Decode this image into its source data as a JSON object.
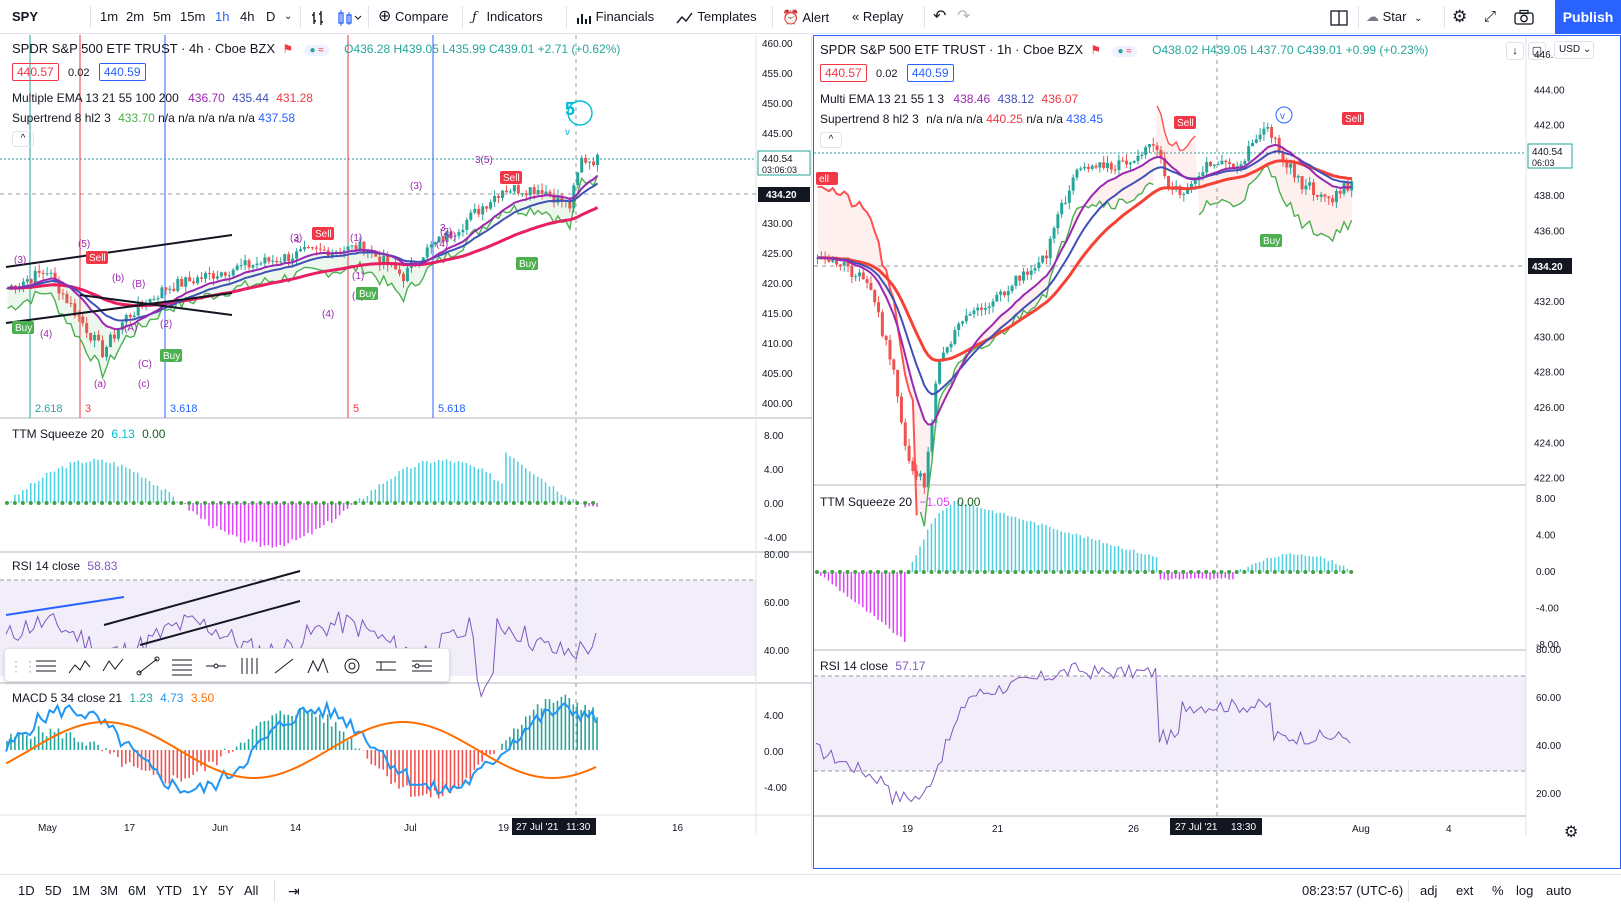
{
  "toolbar": {
    "symbol": "SPY",
    "intervals": [
      "1m",
      "2m",
      "5m",
      "15m",
      "1h",
      "4h",
      "D"
    ],
    "active_interval": "1h",
    "compare": "Compare",
    "indicators": "Indicators",
    "financials": "Financials",
    "templates": "Templates",
    "alert": "Alert",
    "replay": "Replay",
    "star": "Star",
    "publish": "Publish"
  },
  "left": {
    "title": "SPDR S&P 500 ETF TRUST · 4h · Cboe BZX",
    "ohlc": {
      "o": "O436.28",
      "h": "H439.05",
      "l": "L435.99",
      "c": "C439.01",
      "chg": "+2.71 (+0.62%)"
    },
    "bid": "440.57",
    "spread": "0.02",
    "ask": "440.59",
    "ema_label": "Multiple EMA 13 21 55 100 200",
    "ema_vals": [
      "436.70",
      "435.44",
      "431.28"
    ],
    "st_label": "Supertrend 8 hl2 3",
    "st_vals": [
      "433.70",
      "n/a",
      "n/a",
      "n/a",
      "n/a",
      "n/a",
      "437.58"
    ],
    "price_axis": [
      "460.00",
      "455.00",
      "450.00",
      "445.00",
      "440.00",
      "435.00",
      "430.00",
      "425.00",
      "420.00",
      "415.00",
      "410.00",
      "405.00",
      "400.00"
    ],
    "last_price": "440.54",
    "countdown": "03:06:03",
    "crosshair_price": "434.20",
    "fib_labels": [
      "2.618",
      "3",
      "3.618",
      "5",
      "5.618"
    ],
    "wave_labels": [
      "(3)",
      "(5)",
      "(b)",
      "(B)",
      "(A)",
      "(a)",
      "(c)",
      "(C)",
      "(4)",
      "(2)",
      "(1)",
      "(3)",
      "(4)",
      "(2)",
      "(3)",
      "(4)",
      "3(5)",
      "5",
      "v",
      "(1)",
      "(2)",
      "(4)",
      "3",
      "4",
      "2"
    ],
    "signals": {
      "sell": "Sell",
      "buy": "Buy"
    },
    "ttm_label": "TTM Squeeze 20",
    "ttm_vals": [
      "6.13",
      "0.00"
    ],
    "ttm_axis": [
      "8.00",
      "4.00",
      "0.00",
      "-4.00"
    ],
    "rsi_label": "RSI 14 close",
    "rsi_val": "58.83",
    "rsi_axis": [
      "80.00",
      "60.00",
      "40.00"
    ],
    "macd_label": "MACD 5 34 close 21",
    "macd_vals": [
      "1.23",
      "4.73",
      "3.50"
    ],
    "macd_axis": [
      "4.00",
      "0.00",
      "-4.00"
    ],
    "time_axis": [
      "May",
      "17",
      "Jun",
      "14",
      "Jul",
      "19",
      "16"
    ],
    "crosshair_time": "27 Jul '21",
    "crosshair_time2": "11:30"
  },
  "right": {
    "title": "SPDR S&P 500 ETF TRUST · 1h · Cboe BZX",
    "ohlc": {
      "o": "O438.02",
      "h": "H439.05",
      "l": "L437.70",
      "c": "C439.01",
      "chg": "+0.99 (+0.23%)"
    },
    "bid": "440.57",
    "spread": "0.02",
    "ask": "440.59",
    "ema_label": "Multi EMA 13 21 55 1 3",
    "ema_vals": [
      "438.46",
      "438.12",
      "436.07"
    ],
    "st_label": "Supertrend 8 hl2 3",
    "st_vals": [
      "n/a",
      "n/a",
      "n/a",
      "440.25",
      "n/a",
      "n/a",
      "438.45"
    ],
    "currency": "USD",
    "price_axis": [
      "446.00",
      "444.00",
      "442.00",
      "440.00",
      "438.00",
      "436.00",
      "434.00",
      "432.00",
      "430.00",
      "428.00",
      "426.00",
      "424.00",
      "422.00"
    ],
    "last_price": "440.54",
    "countdown": "06:03",
    "crosshair_price": "434.20",
    "signals": {
      "sell": "Sell",
      "buy": "Buy",
      "sell_partial": "ell"
    },
    "wave_label": "v",
    "ttm_label": "TTM Squeeze 20",
    "ttm_vals": [
      "−1.05",
      "0.00"
    ],
    "ttm_axis": [
      "8.00",
      "4.00",
      "0.00",
      "-4.00",
      "-8.00"
    ],
    "rsi_label": "RSI 14 close",
    "rsi_val": "57.17",
    "rsi_axis": [
      "80.00",
      "60.00",
      "40.00",
      "20.00"
    ],
    "time_axis": [
      "19",
      "21",
      "26",
      "Aug",
      "4"
    ],
    "crosshair_time": "27 Jul '21",
    "crosshair_time2": "13:30"
  },
  "bottom": {
    "ranges": [
      "1D",
      "5D",
      "1M",
      "3M",
      "6M",
      "YTD",
      "1Y",
      "5Y",
      "All"
    ],
    "clock": "08:23:57 (UTC-6)",
    "adj": "adj",
    "ext": "ext",
    "pct": "%",
    "log": "log",
    "auto": "auto"
  },
  "colors": {
    "accent": "#2962ff",
    "up": "#26a69a",
    "down": "#ef5350",
    "ema13": "#9c27b0",
    "ema21": "#3f51b5",
    "ema55": "#f23645",
    "supertrend_up": "#4caf50",
    "supertrend_down": "#ff5252",
    "ttm_pos": "#4dd0e1",
    "ttm_neg": "#e040fb",
    "rsi": "#7e57c2",
    "macd": "#2196f3",
    "signal": "#ff6d00"
  }
}
